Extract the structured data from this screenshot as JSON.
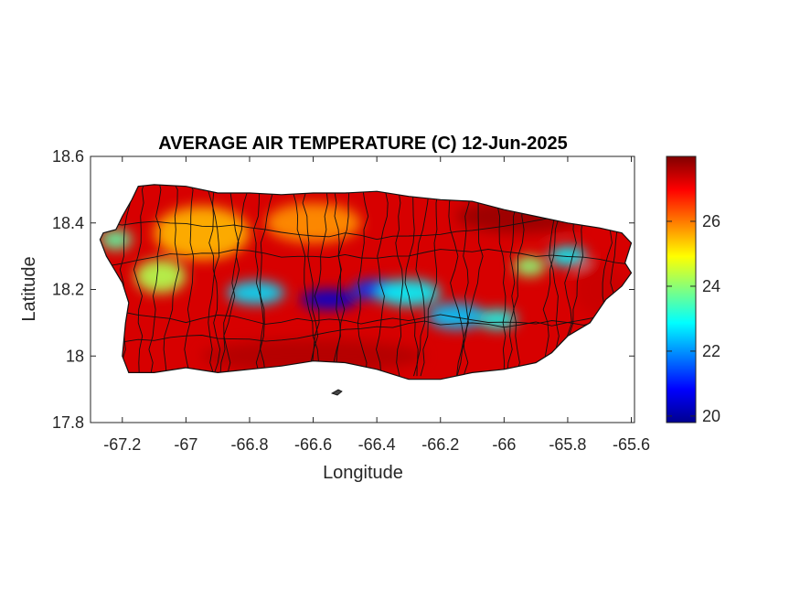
{
  "title": "AVERAGE AIR TEMPERATURE (C) 12-Jun-2025",
  "xlabel": "Longitude",
  "ylabel": "Latitude",
  "axes": {
    "xlim": [
      -67.3,
      -65.59
    ],
    "ylim": [
      17.8,
      18.6
    ],
    "xticks": [
      -67.2,
      -67,
      -66.8,
      -66.6,
      -66.4,
      -66.2,
      -66,
      -65.8,
      -65.6
    ],
    "xtick_labels": [
      "-67.2",
      "-67",
      "-66.8",
      "-66.6",
      "-66.4",
      "-66.2",
      "-66",
      "-65.8",
      "-65.6"
    ],
    "yticks": [
      17.8,
      18,
      18.2,
      18.4,
      18.6
    ],
    "ytick_labels": [
      "17.8",
      "18",
      "18.2",
      "18.4",
      "18.6"
    ],
    "grid": false
  },
  "colorbar": {
    "colormap": "jet",
    "clim": [
      19.8,
      28.0
    ],
    "ticks": [
      20,
      22,
      24,
      26
    ],
    "tick_labels": [
      "20",
      "22",
      "24",
      "26"
    ],
    "placement": "right"
  },
  "colors": {
    "jet": [
      "#00008f",
      "#0000ff",
      "#0080ff",
      "#00ffff",
      "#80ff80",
      "#ffff00",
      "#ff8000",
      "#ff0000",
      "#800000"
    ],
    "boundary": "#111111",
    "axis": "#262626"
  },
  "island_outline": [
    [
      -67.26,
      18.37
    ],
    [
      -67.22,
      18.38
    ],
    [
      -67.2,
      18.42
    ],
    [
      -67.17,
      18.47
    ],
    [
      -67.15,
      18.51
    ],
    [
      -67.1,
      18.515
    ],
    [
      -67.0,
      18.51
    ],
    [
      -66.9,
      18.49
    ],
    [
      -66.8,
      18.49
    ],
    [
      -66.7,
      18.485
    ],
    [
      -66.6,
      18.49
    ],
    [
      -66.5,
      18.49
    ],
    [
      -66.4,
      18.495
    ],
    [
      -66.3,
      18.48
    ],
    [
      -66.2,
      18.47
    ],
    [
      -66.1,
      18.465
    ],
    [
      -66.0,
      18.44
    ],
    [
      -65.9,
      18.42
    ],
    [
      -65.8,
      18.4
    ],
    [
      -65.7,
      18.385
    ],
    [
      -65.63,
      18.37
    ],
    [
      -65.6,
      18.34
    ],
    [
      -65.62,
      18.28
    ],
    [
      -65.6,
      18.25
    ],
    [
      -65.63,
      18.21
    ],
    [
      -65.68,
      18.17
    ],
    [
      -65.73,
      18.1
    ],
    [
      -65.8,
      18.06
    ],
    [
      -65.85,
      18.01
    ],
    [
      -65.9,
      17.98
    ],
    [
      -66.0,
      17.96
    ],
    [
      -66.1,
      17.95
    ],
    [
      -66.2,
      17.93
    ],
    [
      -66.3,
      17.93
    ],
    [
      -66.4,
      17.96
    ],
    [
      -66.5,
      17.98
    ],
    [
      -66.6,
      17.985
    ],
    [
      -66.7,
      17.97
    ],
    [
      -66.8,
      17.96
    ],
    [
      -66.9,
      17.95
    ],
    [
      -67.0,
      17.965
    ],
    [
      -67.1,
      17.95
    ],
    [
      -67.18,
      17.95
    ],
    [
      -67.2,
      18.0
    ],
    [
      -67.19,
      18.1
    ],
    [
      -67.18,
      18.16
    ],
    [
      -67.2,
      18.22
    ],
    [
      -67.25,
      18.3
    ],
    [
      -67.27,
      18.35
    ]
  ],
  "temperature_features": [
    {
      "lon": -66.55,
      "lat": 18.17,
      "rx": 0.09,
      "ry": 0.03,
      "temp": 20.4
    },
    {
      "lon": -66.4,
      "lat": 18.2,
      "rx": 0.08,
      "ry": 0.03,
      "temp": 21.3
    },
    {
      "lon": -66.78,
      "lat": 18.19,
      "rx": 0.09,
      "ry": 0.035,
      "temp": 22.6
    },
    {
      "lon": -66.3,
      "lat": 18.19,
      "rx": 0.1,
      "ry": 0.04,
      "temp": 22.8
    },
    {
      "lon": -66.15,
      "lat": 18.12,
      "rx": 0.09,
      "ry": 0.04,
      "temp": 22.4
    },
    {
      "lon": -66.02,
      "lat": 18.11,
      "rx": 0.06,
      "ry": 0.03,
      "temp": 23.0
    },
    {
      "lon": -65.8,
      "lat": 18.3,
      "rx": 0.06,
      "ry": 0.03,
      "temp": 22.8
    },
    {
      "lon": -65.92,
      "lat": 18.27,
      "rx": 0.05,
      "ry": 0.03,
      "temp": 24.0
    },
    {
      "lon": -67.08,
      "lat": 18.24,
      "rx": 0.08,
      "ry": 0.05,
      "temp": 24.3
    },
    {
      "lon": -67.22,
      "lat": 18.35,
      "rx": 0.05,
      "ry": 0.03,
      "temp": 23.6
    },
    {
      "lon": -66.95,
      "lat": 18.37,
      "rx": 0.15,
      "ry": 0.08,
      "temp": 25.5
    },
    {
      "lon": -66.6,
      "lat": 18.4,
      "rx": 0.15,
      "ry": 0.06,
      "temp": 25.8
    },
    {
      "lon": -65.95,
      "lat": 18.42,
      "rx": 0.2,
      "ry": 0.05,
      "temp": 27.8
    },
    {
      "lon": -66.6,
      "lat": 18.0,
      "rx": 0.35,
      "ry": 0.05,
      "temp": 27.6
    },
    {
      "lon": -65.7,
      "lat": 18.2,
      "rx": 0.08,
      "ry": 0.08,
      "temp": 27.4
    }
  ]
}
